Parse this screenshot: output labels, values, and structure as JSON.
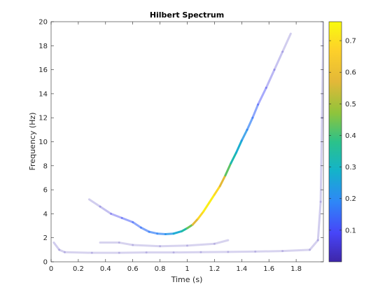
{
  "chart_data": {
    "type": "scatter",
    "title": "Hilbert Spectrum",
    "xlabel": "Time (s)",
    "ylabel": "Frequency (Hz)",
    "xlim": [
      0,
      2
    ],
    "ylim": [
      0,
      20
    ],
    "x_ticks": [
      0,
      0.2,
      0.4,
      0.6,
      0.8,
      1,
      1.2,
      1.4,
      1.6,
      1.8
    ],
    "x_tick_labels": [
      "0",
      "0.2",
      "0.4",
      "0.6",
      "0.8",
      "1",
      "1.2",
      "1.4",
      "1.6",
      "1.8"
    ],
    "y_ticks": [
      0,
      2,
      4,
      6,
      8,
      10,
      12,
      14,
      16,
      18,
      20
    ],
    "y_tick_labels": [
      "0",
      "2",
      "4",
      "6",
      "8",
      "10",
      "12",
      "14",
      "16",
      "18",
      "20"
    ],
    "grid": false,
    "colorbar": {
      "colormap": "parula",
      "range": [
        0,
        0.76
      ],
      "ticks": [
        0.1,
        0.2,
        0.3,
        0.4,
        0.5,
        0.6,
        0.7
      ],
      "tick_labels": [
        "0.1",
        "0.2",
        "0.3",
        "0.4",
        "0.5",
        "0.6",
        "0.7"
      ],
      "placement": "right"
    },
    "series": [
      {
        "points": [
          [
            0.28,
            5.2,
            0.01
          ],
          [
            0.36,
            4.6,
            0.03
          ],
          [
            0.44,
            4.0,
            0.06
          ],
          [
            0.52,
            3.65,
            0.1
          ],
          [
            0.6,
            3.3,
            0.13
          ],
          [
            0.66,
            2.85,
            0.15
          ],
          [
            0.72,
            2.5,
            0.17
          ],
          [
            0.78,
            2.35,
            0.18
          ],
          [
            0.84,
            2.3,
            0.2
          ],
          [
            0.9,
            2.35,
            0.24
          ],
          [
            0.96,
            2.55,
            0.3
          ],
          [
            1.0,
            2.8,
            0.38
          ],
          [
            1.04,
            3.1,
            0.5
          ],
          [
            1.08,
            3.6,
            0.65
          ],
          [
            1.12,
            4.2,
            0.72
          ],
          [
            1.16,
            4.9,
            0.74
          ],
          [
            1.2,
            5.6,
            0.72
          ],
          [
            1.24,
            6.3,
            0.65
          ],
          [
            1.28,
            7.2,
            0.5
          ],
          [
            1.32,
            8.2,
            0.35
          ],
          [
            1.36,
            9.1,
            0.3
          ],
          [
            1.4,
            10.1,
            0.25
          ],
          [
            1.44,
            11.0,
            0.2
          ],
          [
            1.48,
            12.0,
            0.16
          ],
          [
            1.52,
            13.1,
            0.12
          ],
          [
            1.58,
            14.5,
            0.08
          ],
          [
            1.64,
            16.0,
            0.05
          ],
          [
            1.7,
            17.5,
            0.03
          ],
          [
            1.76,
            19.0,
            0.01
          ]
        ]
      },
      {
        "points": [
          [
            0.02,
            1.6,
            0.02
          ],
          [
            0.06,
            1.0,
            0.02
          ],
          [
            0.1,
            0.8,
            0.01
          ],
          [
            0.3,
            0.75,
            0.01
          ],
          [
            0.5,
            0.75,
            0.01
          ],
          [
            0.7,
            0.78,
            0.01
          ],
          [
            0.9,
            0.78,
            0.01
          ],
          [
            1.1,
            0.8,
            0.01
          ],
          [
            1.3,
            0.82,
            0.01
          ],
          [
            1.5,
            0.85,
            0.01
          ],
          [
            1.7,
            0.9,
            0.01
          ],
          [
            1.9,
            1.0,
            0.01
          ],
          [
            1.96,
            1.8,
            0.02
          ],
          [
            1.98,
            5.0,
            0.02
          ],
          [
            1.99,
            12.0,
            0.02
          ],
          [
            2.0,
            20.0,
            0.02
          ]
        ]
      },
      {
        "points": [
          [
            0.36,
            1.6,
            0.01
          ],
          [
            0.5,
            1.6,
            0.01
          ],
          [
            0.6,
            1.4,
            0.01
          ],
          [
            0.8,
            1.3,
            0.01
          ],
          [
            1.0,
            1.35,
            0.01
          ],
          [
            1.2,
            1.5,
            0.01
          ],
          [
            1.3,
            1.8,
            0.01
          ]
        ]
      }
    ]
  }
}
